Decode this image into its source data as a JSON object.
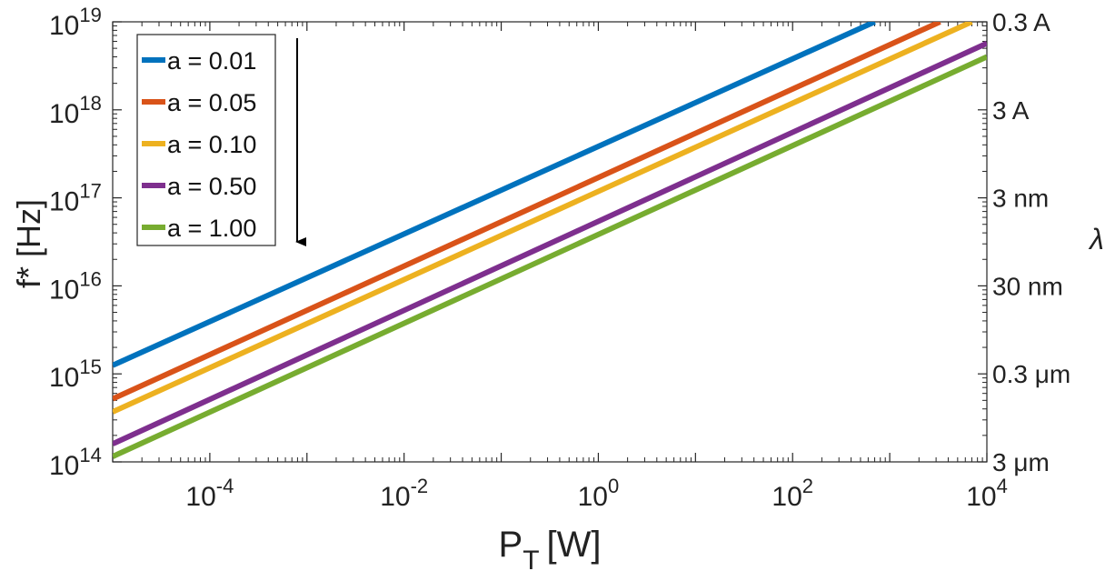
{
  "chart_data": {
    "type": "line",
    "xlabel": "P",
    "xlabel_sub": "T",
    "xlabel_unit": "[W]",
    "ylabel": "f* [Hz]",
    "y2label": "λ",
    "xscale": "log",
    "yscale": "log",
    "xlim": [
      1e-05,
      10000
    ],
    "ylim": [
      100000000000000.0,
      1e+19
    ],
    "grid": false,
    "legend_position": "top-left",
    "x_ticks": [
      {
        "value": 0.0001,
        "base": "10",
        "exp": "-4"
      },
      {
        "value": 0.01,
        "base": "10",
        "exp": "-2"
      },
      {
        "value": 1,
        "base": "10",
        "exp": "0"
      },
      {
        "value": 100,
        "base": "10",
        "exp": "2"
      },
      {
        "value": 10000,
        "base": "10",
        "exp": "4"
      }
    ],
    "y_ticks": [
      {
        "value": 100000000000000.0,
        "base": "10",
        "exp": "14"
      },
      {
        "value": 1000000000000000.0,
        "base": "10",
        "exp": "15"
      },
      {
        "value": 1e+16,
        "base": "10",
        "exp": "16"
      },
      {
        "value": 1e+17,
        "base": "10",
        "exp": "17"
      },
      {
        "value": 1e+18,
        "base": "10",
        "exp": "18"
      },
      {
        "value": 1e+19,
        "base": "10",
        "exp": "19"
      }
    ],
    "y2_ticks": [
      {
        "value": 1e+19,
        "label": "0.3 A"
      },
      {
        "value": 1e+18,
        "label": "3 A"
      },
      {
        "value": 1e+17,
        "label": "3 nm"
      },
      {
        "value": 1e+16,
        "label": "30 nm"
      },
      {
        "value": 1000000000000000.0,
        "label": "0.3 μm"
      },
      {
        "value": 100000000000000.0,
        "label": "3 μm"
      }
    ],
    "series": [
      {
        "name": "a = 0.01",
        "color": "#0072BD",
        "x": [
          1e-05,
          700
        ],
        "y": [
          1250000000000000.0,
          1e+19
        ]
      },
      {
        "name": "a = 0.05",
        "color": "#D95319",
        "x": [
          1e-05,
          3300
        ],
        "y": [
          520000000000000.0,
          1e+19
        ]
      },
      {
        "name": "a = 0.10",
        "color": "#EDB120",
        "x": [
          1e-05,
          7000
        ],
        "y": [
          370000000000000.0,
          1e+19
        ]
      },
      {
        "name": "a = 0.50",
        "color": "#7E2F8E",
        "x": [
          1e-05,
          10000
        ],
        "y": [
          160000000000000.0,
          5.7e+18
        ]
      },
      {
        "name": "a = 1.00",
        "color": "#77AC30",
        "x": [
          1e-05,
          10000
        ],
        "y": [
          115000000000000.0,
          4e+18
        ]
      }
    ]
  }
}
